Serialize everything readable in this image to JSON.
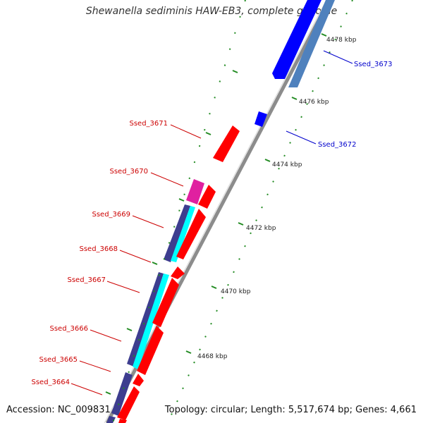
{
  "title": "Shewanella sediminis HAW-EB3, complete genome",
  "footer": {
    "accession": "Accession: NC_009831",
    "topology": "Topology: circular; Length: 5,517,674 bp; Genes: 4,661"
  },
  "kbp_ticks": [
    "4478 kbp",
    "4476 kbp",
    "4474 kbp",
    "4472 kbp",
    "4470 kbp",
    "4468 kbp"
  ],
  "gene_labels": [
    {
      "text": "Ssed_3673",
      "strand": "forward"
    },
    {
      "text": "Ssed_3672",
      "strand": "forward"
    },
    {
      "text": "Ssed_3671",
      "strand": "reverse"
    },
    {
      "text": "Ssed_3670",
      "strand": "reverse"
    },
    {
      "text": "Ssed_3669",
      "strand": "reverse"
    },
    {
      "text": "Ssed_3668",
      "strand": "reverse"
    },
    {
      "text": "Ssed_3667",
      "strand": "reverse"
    },
    {
      "text": "Ssed_3666",
      "strand": "reverse"
    },
    {
      "text": "Ssed_3665",
      "strand": "reverse"
    },
    {
      "text": "Ssed_3664",
      "strand": "reverse"
    }
  ],
  "colors": {
    "backbone": "#8c8c8c",
    "forward_cds": "#0000ff",
    "forward_gene": "#4f81bd",
    "reverse_cds": "#ff0000",
    "reverse_gene": "#3d3d8f",
    "rna": "#00ffff",
    "misc": "#e020a0",
    "tick": "#228b22",
    "label_forward": "#0000cc",
    "label_reverse": "#cc0000"
  }
}
